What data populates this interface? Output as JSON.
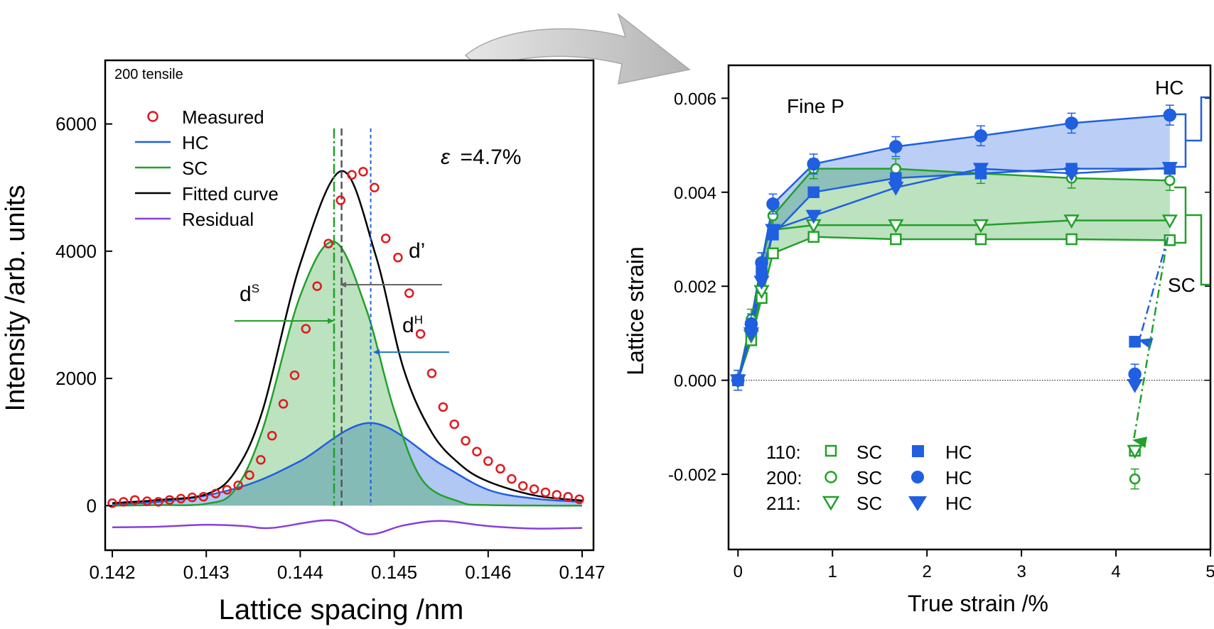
{
  "colors": {
    "measured": "#e0191e",
    "hc": "#1f5fe0",
    "sc": "#22a02a",
    "fit": "#000000",
    "residual": "#8a3fd6",
    "d_prime": "#666666",
    "arrow_gray": "#bdbdbd"
  },
  "left": {
    "annotation_top": "200 tensile",
    "strain_symbol": "ε",
    "strain_value": "=4.7%",
    "ylabel": "Intensity /arb. units",
    "xlabel": "Lattice spacing /nm",
    "x_ticks": [
      "0.142",
      "0.143",
      "0.144",
      "0.145",
      "0.146",
      "0.147"
    ],
    "y_ticks": [
      "0",
      "2000",
      "4000",
      "6000"
    ],
    "legend": [
      "Measured",
      "HC",
      "SC",
      "Fitted curve",
      "Residual"
    ],
    "labels": {
      "ds": "d",
      "ds_sup": "S",
      "dh": "d",
      "dh_sup": "H",
      "dprime": "d’"
    }
  },
  "right": {
    "title": "Fine P",
    "ylabel": "Lattice strain",
    "xlabel": "True strain /%",
    "x_ticks": [
      "0",
      "1",
      "2",
      "3",
      "4",
      "5"
    ],
    "y_ticks": [
      "0.006",
      "0.004",
      "0.002",
      "0.000",
      "-0.002"
    ],
    "bracket_hc": "HC",
    "bracket_sc": "SC",
    "legend_rows": [
      {
        "plane": "110:",
        "sc": "SC",
        "hc": "HC"
      },
      {
        "plane": "200:",
        "sc": "SC",
        "hc": "HC"
      },
      {
        "plane": "211:",
        "sc": "SC",
        "hc": "HC"
      }
    ]
  },
  "chart_data": [
    {
      "type": "line",
      "title": "200 tensile",
      "xlabel": "Lattice spacing /nm",
      "ylabel": "Intensity /arb. units",
      "xlim": [
        0.142,
        0.147
      ],
      "ylim": [
        -700,
        7000
      ],
      "fitted_peak_d": 0.14444,
      "sc_peak_d": 0.14436,
      "hc_peak_d": 0.14475,
      "series": [
        {
          "name": "Measured",
          "x": [
            0.142,
            0.14212,
            0.14224,
            0.14237,
            0.14249,
            0.14261,
            0.14273,
            0.14285,
            0.14297,
            0.1431,
            0.14322,
            0.14334,
            0.14346,
            0.14358,
            0.1437,
            0.14382,
            0.14394,
            0.14406,
            0.14418,
            0.1443,
            0.14443,
            0.14455,
            0.14467,
            0.14479,
            0.14491,
            0.14504,
            0.14516,
            0.14528,
            0.1454,
            0.14552,
            0.14564,
            0.14576,
            0.14588,
            0.146,
            0.14613,
            0.14625,
            0.14637,
            0.14649,
            0.14661,
            0.14673,
            0.14685,
            0.14697
          ],
          "y": [
            40,
            60,
            90,
            70,
            60,
            90,
            110,
            130,
            140,
            190,
            250,
            320,
            480,
            720,
            1100,
            1600,
            2050,
            2780,
            3450,
            4120,
            4800,
            5200,
            5250,
            5000,
            4200,
            3900,
            3340,
            2700,
            2080,
            1550,
            1280,
            1020,
            850,
            700,
            580,
            420,
            310,
            260,
            210,
            170,
            140,
            100
          ]
        },
        {
          "name": "HC",
          "x": [
            0.142,
            0.1425,
            0.143,
            0.1435,
            0.144,
            0.14475,
            0.1455,
            0.146,
            0.1465,
            0.147
          ],
          "y": [
            20,
            60,
            160,
            360,
            700,
            1300,
            650,
            250,
            110,
            60
          ]
        },
        {
          "name": "SC",
          "x": [
            0.142,
            0.1425,
            0.143,
            0.1433,
            0.1436,
            0.144,
            0.14436,
            0.1447,
            0.145,
            0.1453,
            0.1457,
            0.146,
            0.147
          ],
          "y": [
            0,
            10,
            30,
            240,
            1200,
            3300,
            4150,
            3100,
            1500,
            400,
            60,
            10,
            0
          ]
        },
        {
          "name": "Fitted curve",
          "x": [
            0.142,
            0.1425,
            0.143,
            0.1433,
            0.1436,
            0.144,
            0.14444,
            0.1448,
            0.1451,
            0.1454,
            0.1457,
            0.146,
            0.1465,
            0.147
          ],
          "y": [
            40,
            90,
            180,
            520,
            1500,
            3800,
            5260,
            3950,
            2150,
            1150,
            650,
            380,
            160,
            80
          ]
        },
        {
          "name": "Residual",
          "x": [
            0.142,
            0.1425,
            0.143,
            0.1434,
            0.1437,
            0.14433,
            0.14472,
            0.1451,
            0.1455,
            0.146,
            0.1465,
            0.147
          ],
          "y": [
            -340,
            -330,
            -300,
            -320,
            -350,
            -230,
            -450,
            -310,
            -240,
            -320,
            -360,
            -350
          ]
        }
      ]
    },
    {
      "type": "line",
      "title": "Fine P",
      "xlabel": "True strain /%",
      "ylabel": "Lattice strain",
      "xlim": [
        -0.1,
        5
      ],
      "ylim": [
        -0.0036,
        0.0067
      ],
      "series": [
        {
          "name": "110 SC",
          "x": [
            0,
            0.14,
            0.25,
            0.37,
            0.8,
            1.67,
            2.57,
            3.53,
            4.57,
            4.2
          ],
          "y": [
            0,
            0.00085,
            0.00175,
            0.0027,
            0.00305,
            0.003,
            0.003,
            0.003,
            0.00298,
            -0.0015
          ]
        },
        {
          "name": "200 SC",
          "x": [
            0,
            0.14,
            0.25,
            0.37,
            0.8,
            1.67,
            2.57,
            3.53,
            4.57,
            4.2
          ],
          "y": [
            0,
            0.0013,
            0.0025,
            0.0035,
            0.0045,
            0.0045,
            0.0044,
            0.0043,
            0.00425,
            -0.0021
          ]
        },
        {
          "name": "211 SC",
          "x": [
            0,
            0.14,
            0.25,
            0.37,
            0.8,
            1.67,
            2.57,
            3.53,
            4.57,
            4.2
          ],
          "y": [
            0,
            0.00095,
            0.0019,
            0.0032,
            0.0033,
            0.0033,
            0.0033,
            0.0034,
            0.0034,
            -0.0015
          ]
        },
        {
          "name": "110 HC",
          "x": [
            0,
            0.14,
            0.25,
            0.37,
            0.8,
            1.67,
            2.57,
            3.53,
            4.57,
            4.2
          ],
          "y": [
            0,
            0.0011,
            0.0023,
            0.0031,
            0.004,
            0.0043,
            0.0044,
            0.0045,
            0.0045,
            0.00082
          ]
        },
        {
          "name": "200 HC",
          "x": [
            0,
            0.14,
            0.25,
            0.37,
            0.8,
            1.67,
            2.57,
            3.53,
            4.57,
            4.2
          ],
          "y": [
            0,
            0.0012,
            0.0025,
            0.00375,
            0.0046,
            0.00497,
            0.0052,
            0.00547,
            0.00564,
            0.00013
          ]
        },
        {
          "name": "211 HC",
          "x": [
            0,
            0.14,
            0.25,
            0.37,
            0.8,
            1.67,
            2.57,
            3.53,
            4.57,
            4.2
          ],
          "y": [
            0,
            0.001,
            0.0021,
            0.0032,
            0.0035,
            0.0041,
            0.0045,
            0.0044,
            0.00452,
            -0.0001
          ]
        }
      ]
    }
  ]
}
